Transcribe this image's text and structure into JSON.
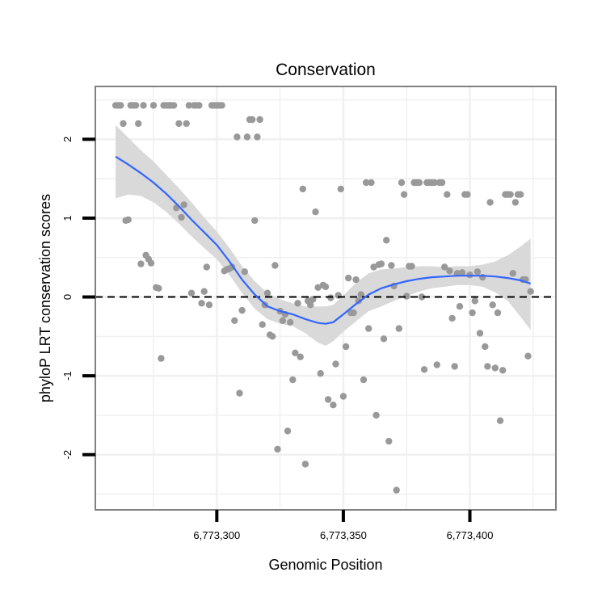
{
  "chart_data": {
    "type": "scatter",
    "title": "Conservation",
    "xlabel": "Genomic Position",
    "ylabel": "phyloP LRT conservation scores",
    "xlim": [
      6773252,
      6773434
    ],
    "ylim": [
      -2.7,
      2.67
    ],
    "xticks": [
      6773300,
      6773350,
      6773400
    ],
    "xtick_labels": [
      "6,773,300",
      "6,773,350",
      "6,773,400"
    ],
    "yticks": [
      -2,
      -1,
      0,
      1,
      2
    ],
    "ytick_labels": [
      "-2",
      "-1",
      "0",
      "1",
      "2"
    ],
    "grid": true,
    "legend": "none",
    "reference_line": {
      "y": 0,
      "style": "dashed"
    },
    "colors": {
      "points": "#999999",
      "smooth_line": "#3366ff",
      "ribbon": "#d9d9d9",
      "grid": "#f0f0f0",
      "panel_border": "#808080"
    },
    "points": [
      [
        6773260,
        2.43
      ],
      [
        6773261,
        2.43
      ],
      [
        6773262,
        2.43
      ],
      [
        6773263,
        2.2
      ],
      [
        6773264,
        0.97
      ],
      [
        6773265,
        0.98
      ],
      [
        6773266,
        2.43
      ],
      [
        6773267,
        2.43
      ],
      [
        6773268,
        2.43
      ],
      [
        6773269,
        2.2
      ],
      [
        6773270,
        0.42
      ],
      [
        6773271,
        2.43
      ],
      [
        6773272,
        0.53
      ],
      [
        6773273,
        0.48
      ],
      [
        6773274,
        0.43
      ],
      [
        6773275,
        2.43
      ],
      [
        6773276,
        0.12
      ],
      [
        6773277,
        0.11
      ],
      [
        6773278,
        -0.78
      ],
      [
        6773279,
        2.43
      ],
      [
        6773280,
        2.43
      ],
      [
        6773281,
        2.43
      ],
      [
        6773282,
        2.43
      ],
      [
        6773283,
        2.43
      ],
      [
        6773284,
        1.13
      ],
      [
        6773285,
        2.2
      ],
      [
        6773286,
        1.01
      ],
      [
        6773287,
        1.17
      ],
      [
        6773288,
        2.2
      ],
      [
        6773289,
        2.43
      ],
      [
        6773290,
        0.05
      ],
      [
        6773291,
        2.43
      ],
      [
        6773292,
        2.43
      ],
      [
        6773293,
        2.43
      ],
      [
        6773294,
        -0.08
      ],
      [
        6773295,
        0.07
      ],
      [
        6773296,
        0.38
      ],
      [
        6773297,
        -0.1
      ],
      [
        6773298,
        2.43
      ],
      [
        6773299,
        2.43
      ],
      [
        6773300,
        2.43
      ],
      [
        6773301,
        2.43
      ],
      [
        6773302,
        2.43
      ],
      [
        6773303,
        0.33
      ],
      [
        6773304,
        0.35
      ],
      [
        6773305,
        0.36
      ],
      [
        6773306,
        0.38
      ],
      [
        6773307,
        -0.3
      ],
      [
        6773308,
        2.03
      ],
      [
        6773309,
        -1.22
      ],
      [
        6773310,
        -0.17
      ],
      [
        6773311,
        0.32
      ],
      [
        6773312,
        2.03
      ],
      [
        6773313,
        2.25
      ],
      [
        6773314,
        2.25
      ],
      [
        6773315,
        0.97
      ],
      [
        6773316,
        2.03
      ],
      [
        6773317,
        2.25
      ],
      [
        6773318,
        -0.35
      ],
      [
        6773319,
        -0.1
      ],
      [
        6773320,
        0.05
      ],
      [
        6773321,
        -0.48
      ],
      [
        6773322,
        -0.5
      ],
      [
        6773323,
        0.4
      ],
      [
        6773324,
        -1.93
      ],
      [
        6773325,
        -0.18
      ],
      [
        6773326,
        -0.3
      ],
      [
        6773327,
        -0.22
      ],
      [
        6773328,
        -1.7
      ],
      [
        6773329,
        -0.32
      ],
      [
        6773330,
        -1.05
      ],
      [
        6773331,
        -0.71
      ],
      [
        6773332,
        -0.08
      ],
      [
        6773333,
        -0.76
      ],
      [
        6773334,
        1.37
      ],
      [
        6773335,
        -2.12
      ],
      [
        6773336,
        -0.05
      ],
      [
        6773337,
        -0.1
      ],
      [
        6773338,
        -0.03
      ],
      [
        6773339,
        1.08
      ],
      [
        6773340,
        0.12
      ],
      [
        6773341,
        -0.97
      ],
      [
        6773342,
        0.15
      ],
      [
        6773343,
        0.13
      ],
      [
        6773344,
        -1.3
      ],
      [
        6773345,
        -0.01
      ],
      [
        6773346,
        -1.37
      ],
      [
        6773347,
        -0.85
      ],
      [
        6773348,
        0.02
      ],
      [
        6773349,
        1.37
      ],
      [
        6773350,
        -1.26
      ],
      [
        6773351,
        -0.63
      ],
      [
        6773352,
        0.24
      ],
      [
        6773353,
        -0.2
      ],
      [
        6773354,
        -0.2
      ],
      [
        6773355,
        0.22
      ],
      [
        6773356,
        -0.05
      ],
      [
        6773357,
        0.03
      ],
      [
        6773358,
        -1.05
      ],
      [
        6773359,
        1.45
      ],
      [
        6773360,
        -0.4
      ],
      [
        6773361,
        1.45
      ],
      [
        6773362,
        0.38
      ],
      [
        6773363,
        -1.5
      ],
      [
        6773364,
        0.41
      ],
      [
        6773365,
        0.42
      ],
      [
        6773366,
        -0.53
      ],
      [
        6773367,
        0.72
      ],
      [
        6773368,
        -1.83
      ],
      [
        6773369,
        0.4
      ],
      [
        6773370,
        0.14
      ],
      [
        6773371,
        -2.45
      ],
      [
        6773372,
        -0.4
      ],
      [
        6773373,
        1.45
      ],
      [
        6773374,
        1.3
      ],
      [
        6773375,
        0.01
      ],
      [
        6773376,
        0.39
      ],
      [
        6773377,
        0.39
      ],
      [
        6773378,
        1.45
      ],
      [
        6773379,
        1.45
      ],
      [
        6773380,
        1.45
      ],
      [
        6773381,
        0.0
      ],
      [
        6773382,
        -0.92
      ],
      [
        6773383,
        1.45
      ],
      [
        6773384,
        1.45
      ],
      [
        6773385,
        1.45
      ],
      [
        6773386,
        1.45
      ],
      [
        6773387,
        -0.86
      ],
      [
        6773388,
        1.45
      ],
      [
        6773389,
        1.45
      ],
      [
        6773390,
        0.38
      ],
      [
        6773391,
        1.3
      ],
      [
        6773392,
        0.33
      ],
      [
        6773393,
        -0.27
      ],
      [
        6773394,
        -0.88
      ],
      [
        6773395,
        0.3
      ],
      [
        6773396,
        -0.12
      ],
      [
        6773397,
        0.31
      ],
      [
        6773398,
        1.3
      ],
      [
        6773399,
        1.3
      ],
      [
        6773400,
        0.28
      ],
      [
        6773401,
        -0.2
      ],
      [
        6773402,
        -0.05
      ],
      [
        6773403,
        0.32
      ],
      [
        6773404,
        -0.46
      ],
      [
        6773405,
        0.25
      ],
      [
        6773406,
        -0.63
      ],
      [
        6773407,
        -0.88
      ],
      [
        6773408,
        1.2
      ],
      [
        6773409,
        -0.1
      ],
      [
        6773410,
        -0.9
      ],
      [
        6773411,
        -0.2
      ],
      [
        6773412,
        -1.57
      ],
      [
        6773413,
        -0.93
      ],
      [
        6773414,
        1.3
      ],
      [
        6773415,
        1.3
      ],
      [
        6773416,
        1.3
      ],
      [
        6773417,
        0.3
      ],
      [
        6773418,
        1.2
      ],
      [
        6773419,
        1.3
      ],
      [
        6773420,
        1.3
      ],
      [
        6773421,
        0.22
      ],
      [
        6773422,
        0.22
      ],
      [
        6773423,
        -0.75
      ],
      [
        6773424,
        0.07
      ]
    ],
    "smooth_line": [
      [
        6773260,
        1.78
      ],
      [
        6773265,
        1.68
      ],
      [
        6773270,
        1.57
      ],
      [
        6773275,
        1.45
      ],
      [
        6773280,
        1.31
      ],
      [
        6773285,
        1.15
      ],
      [
        6773290,
        0.98
      ],
      [
        6773295,
        0.82
      ],
      [
        6773300,
        0.66
      ],
      [
        6773305,
        0.45
      ],
      [
        6773310,
        0.22
      ],
      [
        6773315,
        0.03
      ],
      [
        6773320,
        -0.12
      ],
      [
        6773325,
        -0.18
      ],
      [
        6773330,
        -0.22
      ],
      [
        6773335,
        -0.28
      ],
      [
        6773340,
        -0.33
      ],
      [
        6773343,
        -0.34
      ],
      [
        6773346,
        -0.32
      ],
      [
        6773350,
        -0.22
      ],
      [
        6773355,
        -0.09
      ],
      [
        6773360,
        0.03
      ],
      [
        6773365,
        0.11
      ],
      [
        6773370,
        0.16
      ],
      [
        6773375,
        0.2
      ],
      [
        6773380,
        0.23
      ],
      [
        6773385,
        0.25
      ],
      [
        6773390,
        0.26
      ],
      [
        6773395,
        0.27
      ],
      [
        6773400,
        0.27
      ],
      [
        6773405,
        0.27
      ],
      [
        6773410,
        0.26
      ],
      [
        6773415,
        0.24
      ],
      [
        6773420,
        0.21
      ],
      [
        6773424,
        0.17
      ]
    ],
    "ribbon_upper": [
      [
        6773260,
        2.18
      ],
      [
        6773265,
        2.02
      ],
      [
        6773270,
        1.86
      ],
      [
        6773275,
        1.72
      ],
      [
        6773280,
        1.55
      ],
      [
        6773285,
        1.38
      ],
      [
        6773290,
        1.2
      ],
      [
        6773295,
        1.01
      ],
      [
        6773300,
        0.83
      ],
      [
        6773305,
        0.62
      ],
      [
        6773310,
        0.39
      ],
      [
        6773315,
        0.2
      ],
      [
        6773320,
        0.05
      ],
      [
        6773325,
        -0.03
      ],
      [
        6773330,
        -0.08
      ],
      [
        6773335,
        -0.12
      ],
      [
        6773340,
        -0.12
      ],
      [
        6773343,
        -0.12
      ],
      [
        6773346,
        -0.1
      ],
      [
        6773350,
        0.02
      ],
      [
        6773355,
        0.18
      ],
      [
        6773360,
        0.3
      ],
      [
        6773365,
        0.35
      ],
      [
        6773370,
        0.36
      ],
      [
        6773375,
        0.38
      ],
      [
        6773380,
        0.39
      ],
      [
        6773385,
        0.39
      ],
      [
        6773390,
        0.38
      ],
      [
        6773395,
        0.39
      ],
      [
        6773400,
        0.39
      ],
      [
        6773405,
        0.41
      ],
      [
        6773410,
        0.45
      ],
      [
        6773415,
        0.53
      ],
      [
        6773420,
        0.64
      ],
      [
        6773424,
        0.74
      ]
    ],
    "ribbon_lower": [
      [
        6773260,
        1.25
      ],
      [
        6773265,
        1.3
      ],
      [
        6773270,
        1.28
      ],
      [
        6773275,
        1.2
      ],
      [
        6773280,
        1.08
      ],
      [
        6773285,
        0.93
      ],
      [
        6773290,
        0.77
      ],
      [
        6773295,
        0.62
      ],
      [
        6773300,
        0.48
      ],
      [
        6773305,
        0.28
      ],
      [
        6773310,
        0.05
      ],
      [
        6773315,
        -0.15
      ],
      [
        6773320,
        -0.28
      ],
      [
        6773325,
        -0.34
      ],
      [
        6773330,
        -0.37
      ],
      [
        6773335,
        -0.46
      ],
      [
        6773340,
        -0.58
      ],
      [
        6773343,
        -0.62
      ],
      [
        6773346,
        -0.56
      ],
      [
        6773350,
        -0.44
      ],
      [
        6773355,
        -0.31
      ],
      [
        6773360,
        -0.18
      ],
      [
        6773365,
        -0.12
      ],
      [
        6773370,
        -0.05
      ],
      [
        6773375,
        0.01
      ],
      [
        6773380,
        0.07
      ],
      [
        6773385,
        0.11
      ],
      [
        6773390,
        0.13
      ],
      [
        6773395,
        0.15
      ],
      [
        6773400,
        0.15
      ],
      [
        6773405,
        0.13
      ],
      [
        6773410,
        0.06
      ],
      [
        6773415,
        -0.05
      ],
      [
        6773420,
        -0.25
      ],
      [
        6773424,
        -0.42
      ]
    ]
  }
}
